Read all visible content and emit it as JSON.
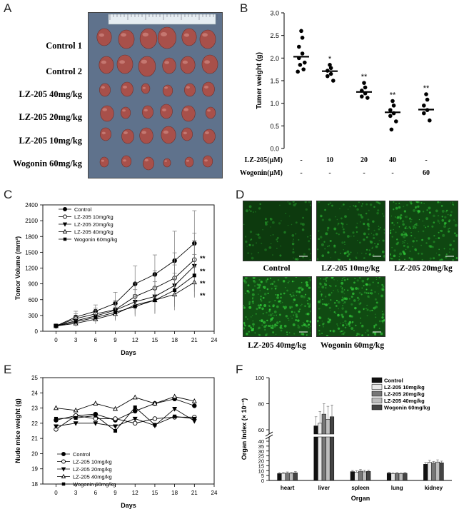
{
  "panel_letters": {
    "a": "A",
    "b": "B",
    "c": "C",
    "d": "D",
    "e": "E",
    "f": "F"
  },
  "panelA": {
    "row_labels": [
      "Control 1",
      "Control 2",
      "LZ-205  40mg/kg",
      "LZ-205  20mg/kg",
      "LZ-205  10mg/kg",
      "Wogonin  60mg/kg"
    ],
    "tumor_color": "#a8504a",
    "background_color": "#5f728c"
  },
  "chart_data": [
    {
      "id": "B",
      "type": "scatter",
      "ylabel": "Tumer weight (g)",
      "ylim": [
        0.0,
        3.0
      ],
      "yticks": [
        "0.0",
        "0.5",
        "1.0",
        "1.5",
        "2.0",
        "2.5",
        "3.0"
      ],
      "yticks_values": [
        0,
        0.5,
        1,
        1.5,
        2,
        2.5,
        3
      ],
      "row1_label": "LZ-205(μM)",
      "row2_label": "Wogonin(μM)",
      "row1": [
        "-",
        "10",
        "20",
        "40",
        "-"
      ],
      "row2": [
        "-",
        "-",
        "-",
        "-",
        "60"
      ],
      "groups": [
        {
          "points": [
            2.6,
            2.45,
            2.25,
            2.1,
            2.0,
            1.9,
            1.85,
            1.75,
            1.7
          ],
          "mean": 2.03,
          "sig": ""
        },
        {
          "points": [
            1.85,
            1.78,
            1.72,
            1.65,
            1.6,
            1.5
          ],
          "mean": 1.71,
          "sig": "*"
        },
        {
          "points": [
            1.45,
            1.35,
            1.28,
            1.22,
            1.15,
            1.12
          ],
          "mean": 1.25,
          "sig": "**"
        },
        {
          "points": [
            1.05,
            0.95,
            0.85,
            0.78,
            0.72,
            0.6,
            0.42
          ],
          "mean": 0.8,
          "sig": "**"
        },
        {
          "points": [
            1.2,
            1.08,
            0.95,
            0.85,
            0.78,
            0.62
          ],
          "mean": 0.86,
          "sig": "**"
        }
      ]
    },
    {
      "id": "C",
      "type": "line",
      "ylabel": "Tomor Volume (mm³)",
      "xlabel": "Days",
      "x": [
        0,
        3,
        6,
        9,
        12,
        15,
        18,
        21
      ],
      "xticks": [
        "0",
        "3",
        "6",
        "9",
        "12",
        "15",
        "18",
        "21",
        "24"
      ],
      "xlim": [
        -2,
        24
      ],
      "ylim": [
        0,
        2400
      ],
      "yticks": [
        "0",
        "300",
        "600",
        "900",
        "1200",
        "1500",
        "1800",
        "2100",
        "2400"
      ],
      "significance": [
        "**",
        "**",
        "**",
        "**"
      ],
      "series": [
        {
          "name": "Control",
          "marker": "circle-filled",
          "values": [
            100,
            270,
            380,
            530,
            900,
            1080,
            1340,
            1670
          ],
          "errors": [
            40,
            110,
            120,
            210,
            340,
            370,
            560,
            620
          ]
        },
        {
          "name": "LZ-205  10mg/kg",
          "marker": "circle-open",
          "values": [
            100,
            240,
            330,
            410,
            660,
            820,
            1010,
            1360
          ],
          "errors": [
            40,
            90,
            110,
            180,
            260,
            330,
            480,
            500
          ]
        },
        {
          "name": "LZ-205  20mg/kg",
          "marker": "triangle-down-filled",
          "values": [
            100,
            200,
            290,
            400,
            560,
            660,
            870,
            1240
          ],
          "errors": [
            40,
            80,
            100,
            160,
            230,
            280,
            390,
            490
          ]
        },
        {
          "name": "LZ-205  40mg/kg",
          "marker": "triangle-up-open",
          "values": [
            100,
            150,
            230,
            330,
            500,
            590,
            700,
            930
          ],
          "errors": [
            40,
            60,
            90,
            130,
            200,
            250,
            300,
            290
          ]
        },
        {
          "name": "Wogonin 60mg/kg",
          "marker": "square-filled",
          "values": [
            100,
            180,
            260,
            360,
            470,
            590,
            780,
            1060
          ],
          "errors": [
            40,
            70,
            90,
            140,
            190,
            260,
            320,
            400
          ]
        }
      ]
    },
    {
      "id": "E",
      "type": "line",
      "ylabel": "Nude mice weight (g)",
      "xlabel": "Days",
      "x": [
        0,
        3,
        6,
        9,
        12,
        15,
        18,
        21
      ],
      "xticks": [
        "0",
        "3",
        "6",
        "9",
        "12",
        "15",
        "18",
        "21",
        "24"
      ],
      "xlim": [
        -2,
        24
      ],
      "ylim": [
        18,
        25
      ],
      "yticks": [
        "18",
        "19",
        "20",
        "21",
        "22",
        "23",
        "24",
        "25"
      ],
      "series": [
        {
          "name": "Control",
          "marker": "circle-filled",
          "values": [
            22.2,
            22.5,
            22.6,
            22.2,
            22.8,
            23.3,
            23.6,
            23.15
          ]
        },
        {
          "name": "LZ-205  10mg/kg",
          "marker": "circle-open",
          "values": [
            21.6,
            22.5,
            22.3,
            22.3,
            22.0,
            22.3,
            22.4,
            22.4
          ]
        },
        {
          "name": "LZ-205  20mg/kg",
          "marker": "triangle-down-filled",
          "values": [
            21.8,
            22.0,
            22.0,
            21.8,
            22.3,
            21.85,
            22.95,
            22.15
          ]
        },
        {
          "name": "LZ-205  40mg/kg",
          "marker": "triangle-up-open",
          "values": [
            23.0,
            22.85,
            23.3,
            22.95,
            23.7,
            23.3,
            23.75,
            23.45
          ]
        },
        {
          "name": "Wogonin  60mg/kg",
          "marker": "square-filled",
          "values": [
            22.3,
            22.35,
            22.5,
            21.5,
            23.05,
            21.9,
            22.45,
            22.3
          ]
        }
      ]
    },
    {
      "id": "F",
      "type": "bar",
      "ylabel": "Organ Index (× 10⁻³)",
      "xlabel": "Organ",
      "categories": [
        "heart",
        "liver",
        "spleen",
        "lung",
        "kidney"
      ],
      "yticks_lower": [
        "0",
        "5",
        "10",
        "15",
        "20",
        "25",
        "30",
        "35",
        "40"
      ],
      "yticks_upper": [
        "60",
        "80",
        "100"
      ],
      "axis_break": [
        40,
        60
      ],
      "series": [
        {
          "name": "Control",
          "color": "#111111",
          "values": [
            7.0,
            63,
            9.0,
            7.5,
            16.5
          ],
          "errors": [
            1.0,
            7,
            1.2,
            1.0,
            1.8
          ]
        },
        {
          "name": "LZ-205  10mg/kg",
          "color": "#e8e8e8",
          "values": [
            7.2,
            65,
            8.5,
            7.0,
            18.5
          ],
          "errors": [
            1.0,
            9,
            1.5,
            0.8,
            2.0
          ]
        },
        {
          "name": "LZ-205  20mg/kg",
          "color": "#777777",
          "values": [
            7.5,
            72,
            9.5,
            7.2,
            17.8
          ],
          "errors": [
            1.2,
            8,
            1.8,
            0.9,
            1.6
          ]
        },
        {
          "name": "LZ-205  40mg/kg",
          "color": "#bdbdbd",
          "values": [
            7.3,
            68,
            8.8,
            7.0,
            18.8
          ],
          "errors": [
            1.0,
            10,
            1.5,
            0.7,
            2.2
          ]
        },
        {
          "name": "Wogonin  60mg/kg",
          "color": "#444444",
          "values": [
            7.8,
            70,
            9.2,
            7.3,
            18.0
          ],
          "errors": [
            1.3,
            9,
            1.4,
            0.8,
            1.7
          ]
        }
      ]
    }
  ],
  "panelD": {
    "labels": [
      "Control",
      "LZ-205 10mg/kg",
      "LZ-205 20mg/kg",
      "LZ-205 40mg/kg",
      "Wogonin 60mg/kg"
    ],
    "fluorescence_color": "#34d23c",
    "intensity": [
      0.35,
      0.55,
      0.75,
      0.95,
      0.85
    ]
  }
}
